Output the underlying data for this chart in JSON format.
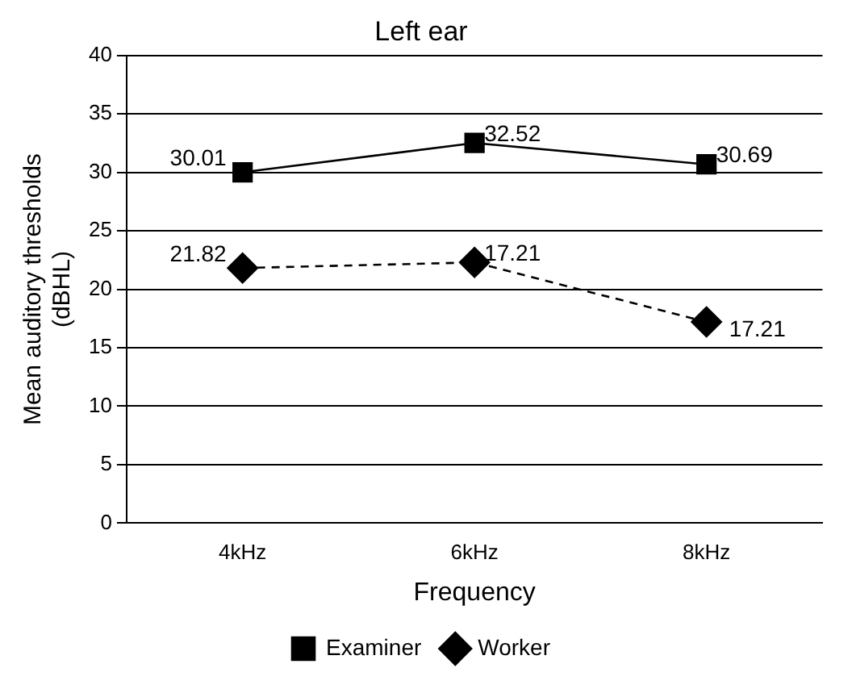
{
  "chart_data": {
    "type": "line",
    "title": "Left ear",
    "xlabel": "Frequency",
    "ylabel": "Mean auditory thresholds\n(dBHL)",
    "categories": [
      "4kHz",
      "6kHz",
      "8kHz"
    ],
    "series": [
      {
        "name": "Examiner",
        "color": "#000000",
        "values": [
          30.01,
          32.52,
          30.69
        ],
        "value_labels": [
          "30.01",
          "32.52",
          "30.69"
        ],
        "marker": "square",
        "line_style": "solid"
      },
      {
        "name": "Worker",
        "color": "#000000",
        "values": [
          21.82,
          22.3,
          17.21
        ],
        "value_labels": [
          "21.82",
          null,
          "17.21"
        ],
        "marker": "diamond",
        "line_style": "dashed"
      }
    ],
    "ylim": [
      0,
      40
    ],
    "yticks": [
      0,
      5,
      10,
      15,
      20,
      25,
      30,
      35,
      40
    ],
    "grid": "y",
    "legend": "bottom",
    "annotations": [
      {
        "text": "17.21",
        "x": "6kHz",
        "y": 22.3
      }
    ]
  }
}
